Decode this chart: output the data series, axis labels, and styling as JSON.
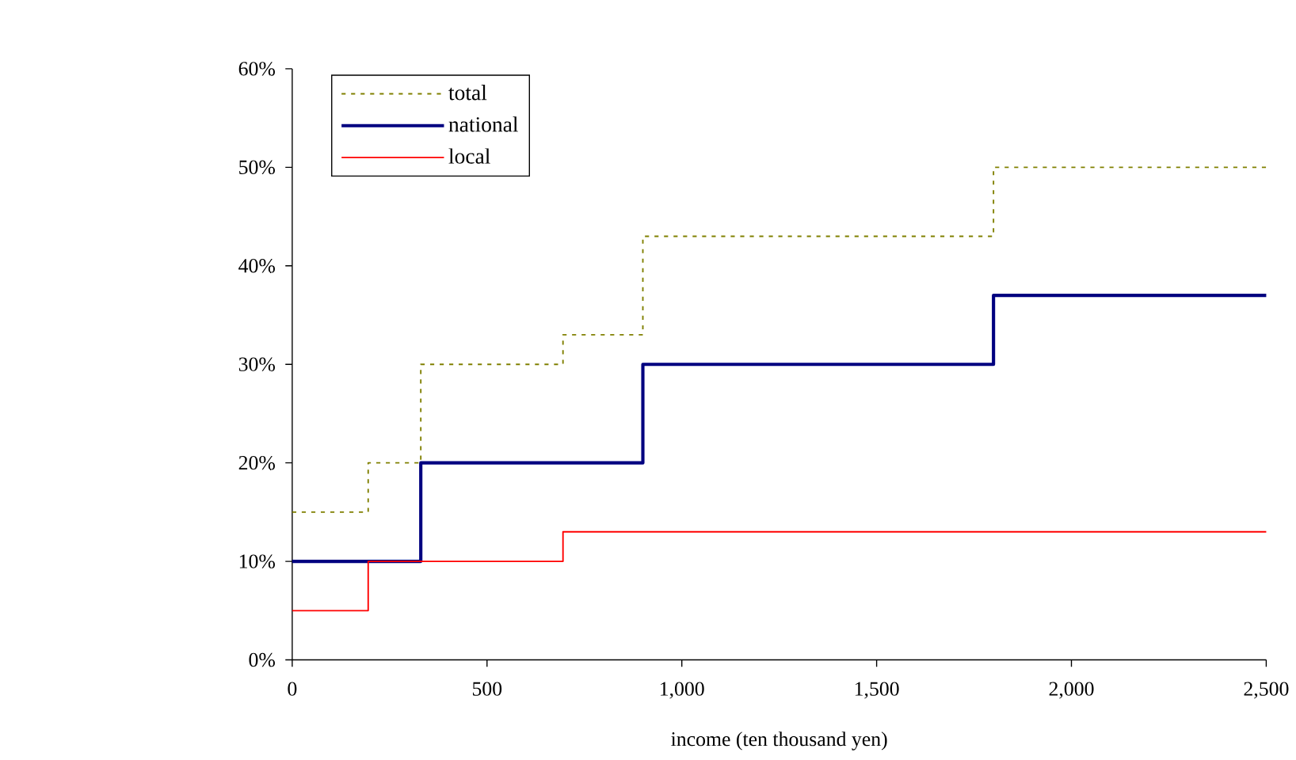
{
  "chart_data": {
    "type": "step",
    "xlabel": "income (ten thousand yen)",
    "series": [
      {
        "name": "total",
        "color": "#808000",
        "line_style": "dotted",
        "x": [
          0,
          195,
          330,
          695,
          900,
          1800,
          2500
        ],
        "values": [
          15,
          20,
          30,
          33,
          43,
          50,
          50
        ]
      },
      {
        "name": "national",
        "color": "#000080",
        "line_style": "solid",
        "x": [
          0,
          330,
          900,
          1800,
          2500
        ],
        "values": [
          10,
          20,
          30,
          37,
          37
        ]
      },
      {
        "name": "local",
        "color": "#ff0000",
        "line_style": "solid",
        "x": [
          0,
          195,
          695,
          2500
        ],
        "values": [
          5,
          10,
          13,
          13
        ]
      }
    ],
    "xlim": [
      0,
      2500
    ],
    "ylim": [
      0,
      60
    ],
    "xticks": [
      0,
      500,
      {
        "value": 1000,
        "label": "1,000"
      },
      {
        "value": 1500,
        "label": "1,500"
      },
      {
        "value": 2000,
        "label": "2,000"
      },
      {
        "value": 2500,
        "label": "2,500"
      }
    ],
    "yticks": [
      {
        "value": 0,
        "label": "0%"
      },
      {
        "value": 10,
        "label": "10%"
      },
      {
        "value": 20,
        "label": "20%"
      },
      {
        "value": 30,
        "label": "30%"
      },
      {
        "value": 40,
        "label": "40%"
      },
      {
        "value": 50,
        "label": "50%"
      },
      {
        "value": 60,
        "label": "60%"
      }
    ],
    "grid": false,
    "legend": "top left"
  }
}
